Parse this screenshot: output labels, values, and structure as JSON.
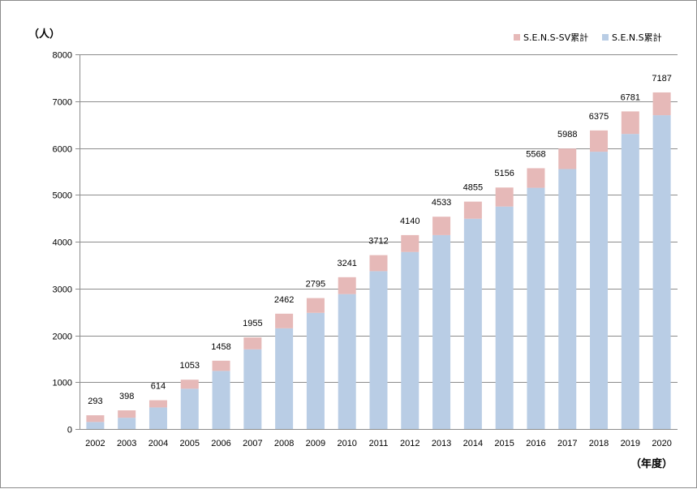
{
  "chart_data": {
    "type": "bar",
    "stacked": true,
    "y_unit_label": "（人）",
    "x_unit_label": "（年度）",
    "categories": [
      "2002",
      "2003",
      "2004",
      "2005",
      "2006",
      "2007",
      "2008",
      "2009",
      "2010",
      "2011",
      "2012",
      "2013",
      "2014",
      "2015",
      "2016",
      "2017",
      "2018",
      "2019",
      "2020"
    ],
    "series": [
      {
        "name": "S.E.N.S累計",
        "color": "#b9cde5",
        "values": [
          150,
          240,
          460,
          860,
          1240,
          1700,
          2150,
          2480,
          2880,
          3370,
          3780,
          4140,
          4490,
          4750,
          5150,
          5550,
          5920,
          6300,
          6700
        ]
      },
      {
        "name": "S.E.N.S-SV累計",
        "color": "#e6b9b8",
        "values": [
          143,
          158,
          154,
          193,
          218,
          255,
          312,
          315,
          361,
          342,
          360,
          393,
          365,
          406,
          418,
          438,
          455,
          481,
          487
        ]
      }
    ],
    "totals": [
      293,
      398,
      614,
      1053,
      1458,
      1955,
      2462,
      2795,
      3241,
      3712,
      4140,
      4533,
      4855,
      5156,
      5568,
      5988,
      6375,
      6781,
      7187
    ],
    "ylim": [
      0,
      8000
    ],
    "yticks": [
      0,
      1000,
      2000,
      3000,
      4000,
      5000,
      6000,
      7000,
      8000
    ],
    "grid": true,
    "legend_position": "top-right",
    "legend_order": [
      "S.E.N.S-SV累計",
      "S.E.N.S累計"
    ]
  }
}
